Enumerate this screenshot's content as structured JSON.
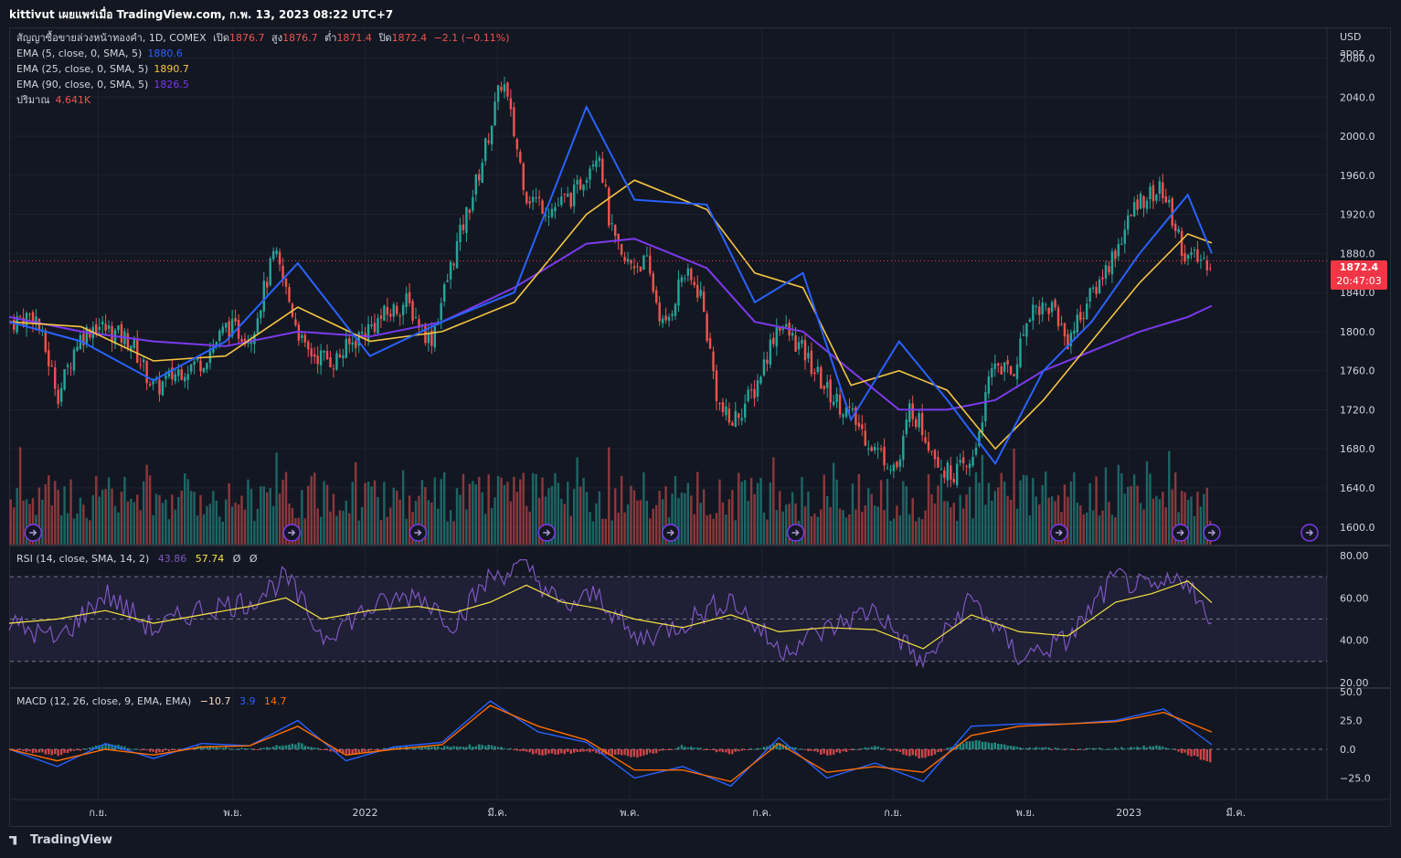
{
  "header": {
    "title": "kittivut เผยแพร่เมื่อ TradingView.com, ก.พ. 13, 2023 08:22 UTC+7"
  },
  "footer": {
    "brand": "TradingView"
  },
  "axis": {
    "currency": "USD",
    "user": "apoz"
  },
  "price_tag": {
    "price": "1872.4",
    "countdown": "20:47:03"
  },
  "legend": {
    "symbol": "สัญญาซื้อขายล่วงหน้าทองคำ, 1D, COMEX",
    "open_label": "เปิด",
    "open": "1876.7",
    "high_label": "สูง",
    "high": "1876.7",
    "low_label": "ต่ำ",
    "low": "1871.4",
    "close_label": "ปิด",
    "close": "1872.4",
    "change": "−2.1 (−0.11%)",
    "ema5": {
      "label": "EMA (5, close, 0, SMA, 5)",
      "value": "1880.6"
    },
    "ema25": {
      "label": "EMA (25, close, 0, SMA, 5)",
      "value": "1890.7"
    },
    "ema90": {
      "label": "EMA (90, close, 0, SMA, 5)",
      "value": "1826.5"
    },
    "volume": {
      "label": "ปริมาณ",
      "value": "4.641K"
    },
    "rsi": {
      "label": "RSI (14, close, SMA, 14, 2)",
      "value": "43.86",
      "ma": "57.74",
      "extra1": "Ø",
      "extra2": "Ø"
    },
    "macd": {
      "label": "MACD (12, 26, close, 9, EMA, EMA)",
      "hist": "−10.7",
      "macd": "3.9",
      "signal": "14.7"
    }
  },
  "colors": {
    "up": "#26a69a",
    "down": "#ef5350",
    "ema5": "#2962ff",
    "ema25": "#f5c542",
    "ema90": "#7c3aed",
    "rsi": "#7e57c2",
    "rsima": "#f5e342",
    "macd": "#2962ff",
    "signal": "#ff6d00"
  },
  "chart_data": [
    {
      "type": "candlestick",
      "title": "สัญญาซื้อขายล่วงหน้าทองคำ, 1D, COMEX",
      "x_tick_labels": [
        "ก.ย.",
        "พ.ย.",
        "2022",
        "มี.ค.",
        "พ.ค.",
        "ก.ค.",
        "ก.ย.",
        "พ.ย.",
        "2023",
        "มี.ค."
      ],
      "y_tick_labels": [
        "2080.0",
        "2040.0",
        "2000.0",
        "1960.0",
        "1920.0",
        "1880.0",
        "1840.0",
        "1800.0",
        "1760.0",
        "1720.0",
        "1680.0",
        "1640.0",
        "1600.0"
      ],
      "ylim": [
        1582,
        2102
      ],
      "close_path_x": [
        0,
        0.02,
        0.04,
        0.055,
        0.07,
        0.1,
        0.12,
        0.14,
        0.16,
        0.18,
        0.2,
        0.22,
        0.245,
        0.27,
        0.29,
        0.31,
        0.33,
        0.35,
        0.37,
        0.39,
        0.41,
        0.43,
        0.45,
        0.47,
        0.49,
        0.5,
        0.51,
        0.53,
        0.545,
        0.56,
        0.575,
        0.59,
        0.6,
        0.62,
        0.64,
        0.66,
        0.68,
        0.7,
        0.72,
        0.74,
        0.75,
        0.76,
        0.78,
        0.8,
        0.82,
        0.835,
        0.85,
        0.87,
        0.88,
        0.9,
        0.92,
        0.94,
        0.96,
        0.98,
        1.0
      ],
      "close_path": [
        1810,
        1818,
        1735,
        1790,
        1808,
        1790,
        1740,
        1760,
        1770,
        1805,
        1795,
        1880,
        1780,
        1770,
        1795,
        1815,
        1830,
        1790,
        1880,
        1960,
        2060,
        1940,
        1925,
        1940,
        1990,
        1905,
        1870,
        1870,
        1800,
        1860,
        1840,
        1725,
        1705,
        1740,
        1810,
        1780,
        1740,
        1715,
        1680,
        1660,
        1725,
        1700,
        1655,
        1660,
        1770,
        1755,
        1825,
        1825,
        1790,
        1835,
        1880,
        1935,
        1945,
        1875,
        1872
      ],
      "ema5": {
        "name": "EMA (5, close, 0, SMA, 5)",
        "last": 1880.6,
        "x": [
          0,
          0.06,
          0.12,
          0.18,
          0.24,
          0.3,
          0.36,
          0.42,
          0.48,
          0.52,
          0.58,
          0.62,
          0.66,
          0.7,
          0.74,
          0.78,
          0.82,
          0.86,
          0.9,
          0.94,
          0.98,
          1.0
        ],
        "y": [
          1810,
          1790,
          1750,
          1790,
          1870,
          1775,
          1810,
          1840,
          2030,
          1935,
          1930,
          1830,
          1860,
          1710,
          1790,
          1730,
          1665,
          1760,
          1810,
          1880,
          1940,
          1880
        ]
      },
      "ema25": {
        "name": "EMA (25, close, 0, SMA, 5)",
        "last": 1890.7,
        "x": [
          0,
          0.06,
          0.12,
          0.18,
          0.24,
          0.3,
          0.36,
          0.42,
          0.48,
          0.52,
          0.58,
          0.62,
          0.66,
          0.7,
          0.74,
          0.78,
          0.82,
          0.86,
          0.9,
          0.94,
          0.98,
          1.0
        ],
        "y": [
          1810,
          1805,
          1770,
          1775,
          1825,
          1790,
          1800,
          1830,
          1920,
          1955,
          1925,
          1860,
          1845,
          1745,
          1760,
          1740,
          1680,
          1730,
          1790,
          1850,
          1900,
          1890.7
        ]
      },
      "ema90": {
        "name": "EMA (90, close, 0, SMA, 5)",
        "last": 1826.5,
        "x": [
          0,
          0.06,
          0.12,
          0.18,
          0.24,
          0.3,
          0.36,
          0.42,
          0.48,
          0.52,
          0.58,
          0.62,
          0.66,
          0.7,
          0.74,
          0.78,
          0.82,
          0.86,
          0.9,
          0.94,
          0.98,
          1.0
        ],
        "y": [
          1815,
          1800,
          1790,
          1785,
          1800,
          1795,
          1810,
          1845,
          1890,
          1895,
          1865,
          1810,
          1800,
          1760,
          1720,
          1720,
          1730,
          1760,
          1780,
          1800,
          1815,
          1826.5
        ]
      }
    },
    {
      "type": "bar",
      "title": "ปริมาณ",
      "last": "4.641K"
    },
    {
      "type": "line",
      "title": "RSI (14, close, SMA, 14, 2)",
      "y_tick_labels": [
        "80.00",
        "60.00",
        "40.00",
        "20.00"
      ],
      "ylim": [
        20,
        80
      ],
      "bands": [
        70,
        50,
        30
      ],
      "rsi": {
        "x": [
          0,
          0.04,
          0.08,
          0.12,
          0.16,
          0.2,
          0.23,
          0.26,
          0.3,
          0.34,
          0.37,
          0.4,
          0.43,
          0.46,
          0.49,
          0.52,
          0.56,
          0.6,
          0.64,
          0.68,
          0.72,
          0.76,
          0.8,
          0.84,
          0.88,
          0.92,
          0.95,
          0.98,
          1.0
        ],
        "y": [
          48,
          40,
          62,
          45,
          55,
          58,
          70,
          42,
          55,
          62,
          48,
          70,
          75,
          55,
          62,
          40,
          48,
          60,
          35,
          45,
          55,
          28,
          60,
          32,
          40,
          70,
          63,
          70,
          44
        ]
      },
      "rsi_ma": {
        "x": [
          0,
          0.04,
          0.08,
          0.12,
          0.16,
          0.2,
          0.23,
          0.26,
          0.3,
          0.34,
          0.37,
          0.4,
          0.43,
          0.46,
          0.49,
          0.52,
          0.56,
          0.6,
          0.64,
          0.68,
          0.72,
          0.76,
          0.8,
          0.84,
          0.88,
          0.92,
          0.95,
          0.98,
          1.0
        ],
        "y": [
          48,
          50,
          54,
          48,
          52,
          56,
          60,
          50,
          54,
          56,
          53,
          58,
          66,
          58,
          55,
          50,
          46,
          52,
          44,
          46,
          45,
          36,
          52,
          44,
          42,
          58,
          62,
          68,
          57.74
        ]
      },
      "last": {
        "rsi": 43.86,
        "ma": 57.74
      }
    },
    {
      "type": "line",
      "title": "MACD (12, 26, close, 9, EMA, EMA)",
      "y_tick_labels": [
        "50.0",
        "25.0",
        "0.0",
        "−25.0"
      ],
      "ylim": [
        -40,
        50
      ],
      "macd": {
        "x": [
          0,
          0.04,
          0.08,
          0.12,
          0.16,
          0.2,
          0.24,
          0.28,
          0.32,
          0.36,
          0.4,
          0.44,
          0.48,
          0.52,
          0.56,
          0.6,
          0.64,
          0.68,
          0.72,
          0.76,
          0.8,
          0.84,
          0.88,
          0.92,
          0.96,
          1.0
        ],
        "y": [
          0,
          -15,
          5,
          -8,
          5,
          3,
          25,
          -10,
          2,
          6,
          42,
          15,
          6,
          -25,
          -15,
          -32,
          10,
          -25,
          -12,
          -28,
          20,
          22,
          22,
          25,
          35,
          4
        ]
      },
      "signal": {
        "x": [
          0,
          0.04,
          0.08,
          0.12,
          0.16,
          0.2,
          0.24,
          0.28,
          0.32,
          0.36,
          0.4,
          0.44,
          0.48,
          0.52,
          0.56,
          0.6,
          0.64,
          0.68,
          0.72,
          0.76,
          0.8,
          0.84,
          0.88,
          0.92,
          0.96,
          1.0
        ],
        "y": [
          0,
          -10,
          0,
          -5,
          2,
          3,
          20,
          -5,
          0,
          4,
          38,
          20,
          8,
          -18,
          -18,
          -28,
          5,
          -20,
          -15,
          -20,
          12,
          20,
          22,
          24,
          32,
          15
        ]
      },
      "last": {
        "hist": -10.7,
        "macd": 3.9,
        "signal": 14.7
      }
    }
  ]
}
